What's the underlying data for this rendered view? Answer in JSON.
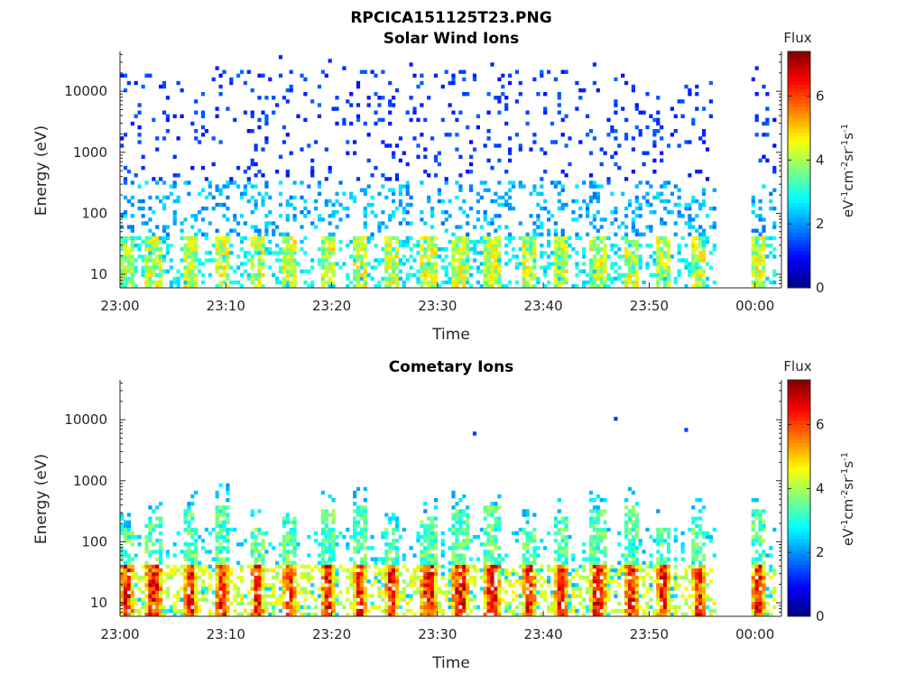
{
  "figure": {
    "title": "RPCICA151125T23.PNG"
  },
  "chart_data": [
    {
      "type": "heatmap",
      "title": "Solar Wind Ions",
      "xlabel": "Time",
      "ylabel": "Energy (eV)",
      "x_ticks": [
        "23:00",
        "23:10",
        "23:20",
        "23:30",
        "23:40",
        "23:50",
        "00:00"
      ],
      "x_tick_minutes": [
        0,
        10,
        20,
        30,
        40,
        50,
        60
      ],
      "xlim_minutes": [
        0,
        62.5
      ],
      "y_scale": "log",
      "y_ticks": [
        "10",
        "100",
        "1000",
        "10000"
      ],
      "y_tick_values": [
        10,
        100,
        1000,
        10000
      ],
      "ylim": [
        6,
        45000
      ],
      "data_gap_minutes": [
        56,
        59.5
      ],
      "colorbar": {
        "title": "Flux",
        "label": "eV-1cm-2sr-1s-1",
        "range": [
          0,
          7.4
        ],
        "ticks": [
          "0",
          "2",
          "4",
          "6"
        ],
        "tick_values": [
          0,
          2,
          4,
          6
        ],
        "colormap": "jet"
      },
      "pattern": "sparse scattered counts across 10-30000 eV; flux mostly 1-3, higher (3-5) below ~40 eV in periodic bursts",
      "burst_minutes": [
        0.5,
        3,
        6.5,
        9.5,
        12.8,
        15.8,
        19.5,
        22.5,
        25.5,
        29,
        32,
        35,
        38.5,
        41.5,
        45,
        48.2,
        51.2,
        54.5,
        60.2
      ],
      "grid": false
    },
    {
      "type": "heatmap",
      "title": "Cometary Ions",
      "xlabel": "Time",
      "ylabel": "Energy (eV)",
      "x_ticks": [
        "23:00",
        "23:10",
        "23:20",
        "23:30",
        "23:40",
        "23:50",
        "00:00"
      ],
      "x_tick_minutes": [
        0,
        10,
        20,
        30,
        40,
        50,
        60
      ],
      "xlim_minutes": [
        0,
        62.5
      ],
      "y_scale": "log",
      "y_ticks": [
        "10",
        "100",
        "1000",
        "10000"
      ],
      "y_tick_values": [
        10,
        100,
        1000,
        10000
      ],
      "ylim": [
        6,
        45000
      ],
      "data_gap_minutes": [
        56,
        59.5
      ],
      "colorbar": {
        "title": "Flux",
        "label": "eV-1cm-2sr-1s-1",
        "range": [
          0,
          7.4
        ],
        "ticks": [
          "0",
          "2",
          "4",
          "6"
        ],
        "tick_values": [
          0,
          2,
          4,
          6
        ],
        "colormap": "jet"
      },
      "pattern": "periodic plumes from ~6 eV up to 100-500 eV; peak flux 5-7 below ~40 eV; isolated points up to ~10000 eV",
      "burst_minutes": [
        0.5,
        3,
        6.5,
        9.5,
        12.8,
        15.8,
        19.5,
        22.5,
        25.5,
        29,
        32,
        35,
        38.5,
        41.5,
        45,
        48.2,
        51.2,
        54.5,
        60.2
      ],
      "grid": false
    }
  ]
}
